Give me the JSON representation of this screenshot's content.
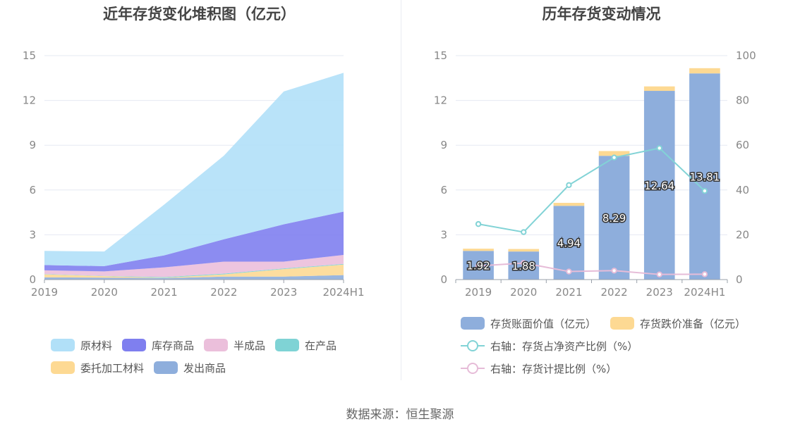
{
  "source": "数据来源：恒生聚源",
  "chart_data": [
    {
      "type": "area",
      "stacked": true,
      "title": "近年存货变化堆积图（亿元）",
      "categories": [
        "2019",
        "2020",
        "2021",
        "2022",
        "2023",
        "2024H1"
      ],
      "ylim": [
        0,
        15
      ],
      "yticks": [
        "0",
        "3",
        "6",
        "9",
        "12",
        "15"
      ],
      "legend_position": "bottom",
      "grid": true,
      "series": [
        {
          "name": "发出商品",
          "color": "#8eaedc",
          "values": [
            0.15,
            0.13,
            0.1,
            0.2,
            0.2,
            0.3
          ]
        },
        {
          "name": "委托加工材料",
          "color": "#fdd993",
          "values": [
            0.2,
            0.1,
            0.02,
            0.15,
            0.5,
            0.7
          ]
        },
        {
          "name": "在产品",
          "color": "#7fd3d5",
          "values": [
            0.02,
            0.02,
            0.05,
            0.05,
            0.05,
            0.05
          ]
        },
        {
          "name": "半成品",
          "color": "#ebbfdb",
          "values": [
            0.25,
            0.3,
            0.65,
            0.8,
            0.45,
            0.6
          ]
        },
        {
          "name": "库存商品",
          "color": "#7f7fef",
          "values": [
            0.35,
            0.35,
            0.8,
            1.5,
            2.5,
            2.9
          ]
        },
        {
          "name": "原材料",
          "color": "#b1e0f8",
          "values": [
            0.95,
            0.98,
            3.4,
            5.6,
            8.9,
            9.3
          ]
        }
      ],
      "legend_order": [
        "原材料",
        "库存商品",
        "半成品",
        "在产品",
        "委托加工材料",
        "发出商品"
      ]
    },
    {
      "type": "bar",
      "stacked": true,
      "title": "历年存货变动情况",
      "categories": [
        "2019",
        "2020",
        "2021",
        "2022",
        "2023",
        "2024H1"
      ],
      "ylim": [
        0,
        15
      ],
      "yticks": [
        "0",
        "3",
        "6",
        "9",
        "12",
        "15"
      ],
      "y2lim": [
        0,
        100
      ],
      "y2ticks": [
        "0",
        "20",
        "40",
        "60",
        "80",
        "100"
      ],
      "legend_position": "bottom",
      "grid": true,
      "bar_series": [
        {
          "name": "存货账面价值（亿元）",
          "color": "#8eaedc",
          "values": [
            1.92,
            1.88,
            4.94,
            8.29,
            12.64,
            13.81
          ],
          "labels": [
            "1.92",
            "1.88",
            "4.94",
            "8.29",
            "12.64",
            "13.81"
          ]
        },
        {
          "name": "存货跌价准备（亿元）",
          "color": "#fdd993",
          "values": [
            0.15,
            0.17,
            0.2,
            0.32,
            0.3,
            0.35
          ]
        }
      ],
      "line_series": [
        {
          "name": "右轴：存货占净资产比例（%）",
          "color": "#82d3d6",
          "axis": "right",
          "values": [
            24.8,
            21.2,
            42.2,
            54.5,
            58.7,
            39.6
          ]
        },
        {
          "name": "右轴：存货计提比例（%）",
          "color": "#e6bcd8",
          "axis": "right",
          "values": [
            6.1,
            7.4,
            3.6,
            4.0,
            2.3,
            2.4
          ]
        }
      ]
    }
  ]
}
